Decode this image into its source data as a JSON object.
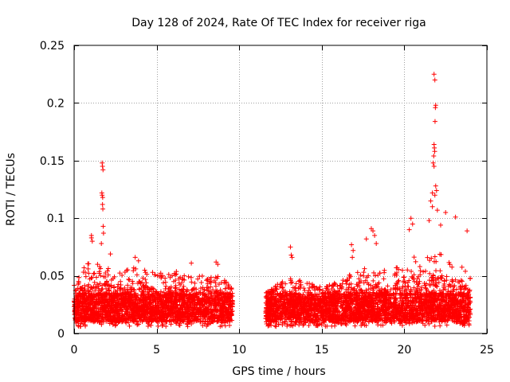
{
  "chart_data": {
    "type": "scatter",
    "title": "Day 128 of 2024, Rate Of TEC Index for receiver riga",
    "xlabel": "GPS time / hours",
    "ylabel": "ROTI / TECUs",
    "xlim": [
      0,
      25
    ],
    "ylim": [
      0,
      0.25
    ],
    "xticks": [
      0,
      5,
      10,
      15,
      20,
      25
    ],
    "yticks": [
      0,
      0.05,
      0.1,
      0.15,
      0.2,
      0.25
    ],
    "xtick_labels": [
      "0",
      "5",
      "10",
      "15",
      "20",
      "25"
    ],
    "ytick_labels": [
      "0",
      "0.05",
      "0.1",
      "0.15",
      "0.2",
      "0.25"
    ],
    "grid": true,
    "marker": "+",
    "series": [
      {
        "name": "ROTI",
        "color": "#ff0000",
        "segments": [
          {
            "x_range": [
              0.0,
              9.6
            ],
            "envelope": [
              [
                0.0,
                0.045
              ],
              [
                0.5,
                0.055
              ],
              [
                1.0,
                0.065
              ],
              [
                1.5,
                0.06
              ],
              [
                2.0,
                0.06
              ],
              [
                2.5,
                0.05
              ],
              [
                3.0,
                0.055
              ],
              [
                3.5,
                0.06
              ],
              [
                4.0,
                0.06
              ],
              [
                4.5,
                0.055
              ],
              [
                5.0,
                0.055
              ],
              [
                5.5,
                0.05
              ],
              [
                6.0,
                0.055
              ],
              [
                7.0,
                0.05
              ],
              [
                8.0,
                0.05
              ],
              [
                8.8,
                0.05
              ],
              [
                9.6,
                0.04
              ]
            ]
          },
          {
            "x_range": [
              11.6,
              24.0
            ],
            "envelope": [
              [
                11.6,
                0.035
              ],
              [
                12.5,
                0.045
              ],
              [
                13.0,
                0.05
              ],
              [
                14.0,
                0.045
              ],
              [
                15.0,
                0.04
              ],
              [
                16.0,
                0.045
              ],
              [
                17.0,
                0.055
              ],
              [
                18.0,
                0.06
              ],
              [
                19.0,
                0.055
              ],
              [
                20.0,
                0.06
              ],
              [
                20.5,
                0.07
              ],
              [
                21.0,
                0.065
              ],
              [
                21.5,
                0.07
              ],
              [
                22.0,
                0.07
              ],
              [
                23.0,
                0.065
              ],
              [
                24.0,
                0.05
              ]
            ]
          }
        ],
        "baseline_range": [
          0.01,
          0.035
        ],
        "notable_points": [
          {
            "x": 1.05,
            "y": 0.085
          },
          {
            "x": 1.05,
            "y": 0.083
          },
          {
            "x": 1.1,
            "y": 0.08
          },
          {
            "x": 1.7,
            "y": 0.148
          },
          {
            "x": 1.72,
            "y": 0.145
          },
          {
            "x": 1.75,
            "y": 0.142
          },
          {
            "x": 1.68,
            "y": 0.122
          },
          {
            "x": 1.7,
            "y": 0.12
          },
          {
            "x": 1.73,
            "y": 0.118
          },
          {
            "x": 1.72,
            "y": 0.112
          },
          {
            "x": 1.74,
            "y": 0.108
          },
          {
            "x": 1.76,
            "y": 0.093
          },
          {
            "x": 1.78,
            "y": 0.087
          },
          {
            "x": 1.65,
            "y": 0.078
          },
          {
            "x": 2.2,
            "y": 0.069
          },
          {
            "x": 3.7,
            "y": 0.066
          },
          {
            "x": 3.9,
            "y": 0.063
          },
          {
            "x": 7.1,
            "y": 0.061
          },
          {
            "x": 8.6,
            "y": 0.062
          },
          {
            "x": 8.7,
            "y": 0.06
          },
          {
            "x": 13.1,
            "y": 0.075
          },
          {
            "x": 13.15,
            "y": 0.068
          },
          {
            "x": 13.2,
            "y": 0.066
          },
          {
            "x": 16.8,
            "y": 0.077
          },
          {
            "x": 16.9,
            "y": 0.072
          },
          {
            "x": 16.85,
            "y": 0.066
          },
          {
            "x": 17.7,
            "y": 0.082
          },
          {
            "x": 18.0,
            "y": 0.091
          },
          {
            "x": 18.1,
            "y": 0.089
          },
          {
            "x": 18.2,
            "y": 0.085
          },
          {
            "x": 18.3,
            "y": 0.078
          },
          {
            "x": 20.4,
            "y": 0.1
          },
          {
            "x": 20.5,
            "y": 0.095
          },
          {
            "x": 20.3,
            "y": 0.09
          },
          {
            "x": 21.8,
            "y": 0.225
          },
          {
            "x": 21.85,
            "y": 0.22
          },
          {
            "x": 21.9,
            "y": 0.198
          },
          {
            "x": 21.88,
            "y": 0.196
          },
          {
            "x": 21.86,
            "y": 0.184
          },
          {
            "x": 21.8,
            "y": 0.164
          },
          {
            "x": 21.82,
            "y": 0.161
          },
          {
            "x": 21.84,
            "y": 0.158
          },
          {
            "x": 21.78,
            "y": 0.154
          },
          {
            "x": 21.75,
            "y": 0.148
          },
          {
            "x": 21.8,
            "y": 0.145
          },
          {
            "x": 21.9,
            "y": 0.128
          },
          {
            "x": 21.95,
            "y": 0.124
          },
          {
            "x": 21.7,
            "y": 0.122
          },
          {
            "x": 21.85,
            "y": 0.12
          },
          {
            "x": 21.6,
            "y": 0.115
          },
          {
            "x": 21.7,
            "y": 0.11
          },
          {
            "x": 22.0,
            "y": 0.107
          },
          {
            "x": 22.5,
            "y": 0.105
          },
          {
            "x": 23.1,
            "y": 0.101
          },
          {
            "x": 21.5,
            "y": 0.098
          },
          {
            "x": 22.2,
            "y": 0.094
          },
          {
            "x": 23.8,
            "y": 0.089
          }
        ]
      }
    ]
  }
}
